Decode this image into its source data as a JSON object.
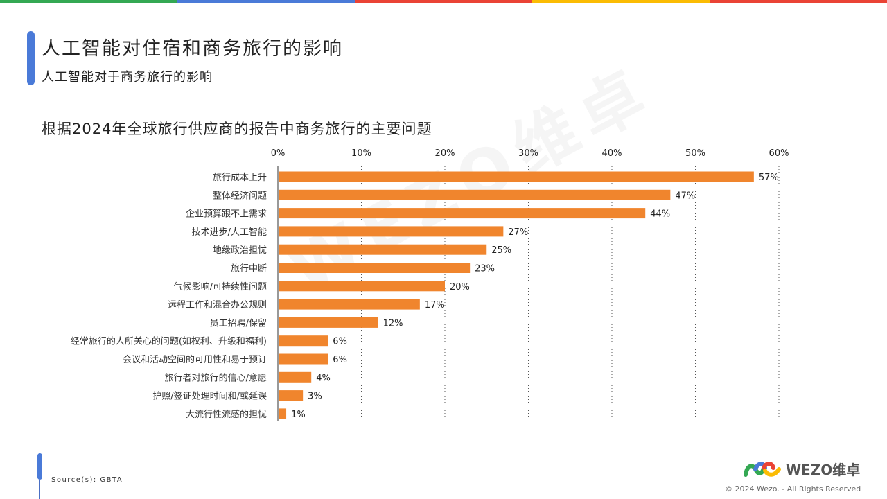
{
  "header": {
    "title": "人工智能对住宿和商务旅行的影响",
    "subtitle": "人工智能对于商务旅行的影响",
    "top_bar_colors": [
      "#34a853",
      "#4a7ad8",
      "#ea4335",
      "#fbbc04",
      "#ea4335"
    ]
  },
  "chart_data": {
    "type": "bar",
    "orientation": "horizontal",
    "title": "根据2024年全球旅行供应商的报告中商务旅行的主要问题",
    "categories": [
      "旅行成本上升",
      "整体经济问题",
      "企业预算跟不上需求",
      "技术进步/人工智能",
      "地缘政治担忧",
      "旅行中断",
      "气候影响/可持续性问题",
      "远程工作和混合办公规则",
      "员工招聘/保留",
      "经常旅行的人所关心的问题(如权利、升级和福利)",
      "会议和活动空间的可用性和易于预订",
      "旅行者对旅行的信心/意愿",
      "护照/签证处理时间和/或延误",
      "大流行性流感的担忧"
    ],
    "values": [
      57,
      47,
      44,
      27,
      25,
      23,
      20,
      17,
      12,
      6,
      6,
      4,
      3,
      1
    ],
    "data_labels": [
      "57%",
      "47%",
      "44%",
      "27%",
      "25%",
      "23%",
      "20%",
      "17%",
      "12%",
      "6%",
      "6%",
      "4%",
      "3%",
      "1%"
    ],
    "xlim": [
      0,
      60
    ],
    "xticks": [
      "0%",
      "10%",
      "20%",
      "30%",
      "40%",
      "50%",
      "60%"
    ],
    "x_axis_position": "top",
    "grid": "vertical-dotted",
    "bar_color": "#f0852d"
  },
  "watermark": "WEZO维卓",
  "footer": {
    "source": "Source(s): GBTA",
    "logo_text": "WEZO维卓",
    "copyright": "© 2024 Wezo. - All Rights Reserved"
  }
}
